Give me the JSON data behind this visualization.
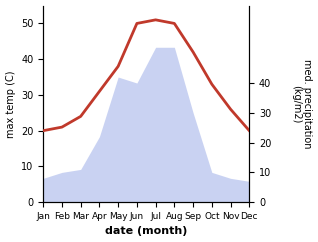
{
  "months": [
    "Jan",
    "Feb",
    "Mar",
    "Apr",
    "May",
    "Jun",
    "Jul",
    "Aug",
    "Sep",
    "Oct",
    "Nov",
    "Dec"
  ],
  "month_indices": [
    1,
    2,
    3,
    4,
    5,
    6,
    7,
    8,
    9,
    10,
    11,
    12
  ],
  "temperature": [
    20,
    21,
    24,
    31,
    38,
    50,
    51,
    50,
    42,
    33,
    26,
    20
  ],
  "precipitation": [
    8,
    10,
    11,
    22,
    42,
    40,
    52,
    52,
    30,
    10,
    8,
    7
  ],
  "temp_color": "#c0392b",
  "precip_fill_color": "#b8c4ee",
  "precip_fill_alpha": 0.75,
  "temp_ylim": [
    0,
    55
  ],
  "precip_ylim": [
    0,
    66
  ],
  "temp_yticks": [
    0,
    10,
    20,
    30,
    40,
    50
  ],
  "precip_yticks": [
    0,
    10,
    20,
    30,
    40
  ],
  "precip_yticklabels": [
    "0",
    "10",
    "20",
    "30",
    "40"
  ],
  "xlabel": "date (month)",
  "ylabel_left": "max temp (C)",
  "ylabel_right": "med. precipitation\n(kg/m2)",
  "background_color": "#ffffff",
  "line_width": 2.0,
  "xlabel_fontsize": 8,
  "ylabel_fontsize": 7,
  "tick_fontsize": 7,
  "xtick_fontsize": 6.5
}
